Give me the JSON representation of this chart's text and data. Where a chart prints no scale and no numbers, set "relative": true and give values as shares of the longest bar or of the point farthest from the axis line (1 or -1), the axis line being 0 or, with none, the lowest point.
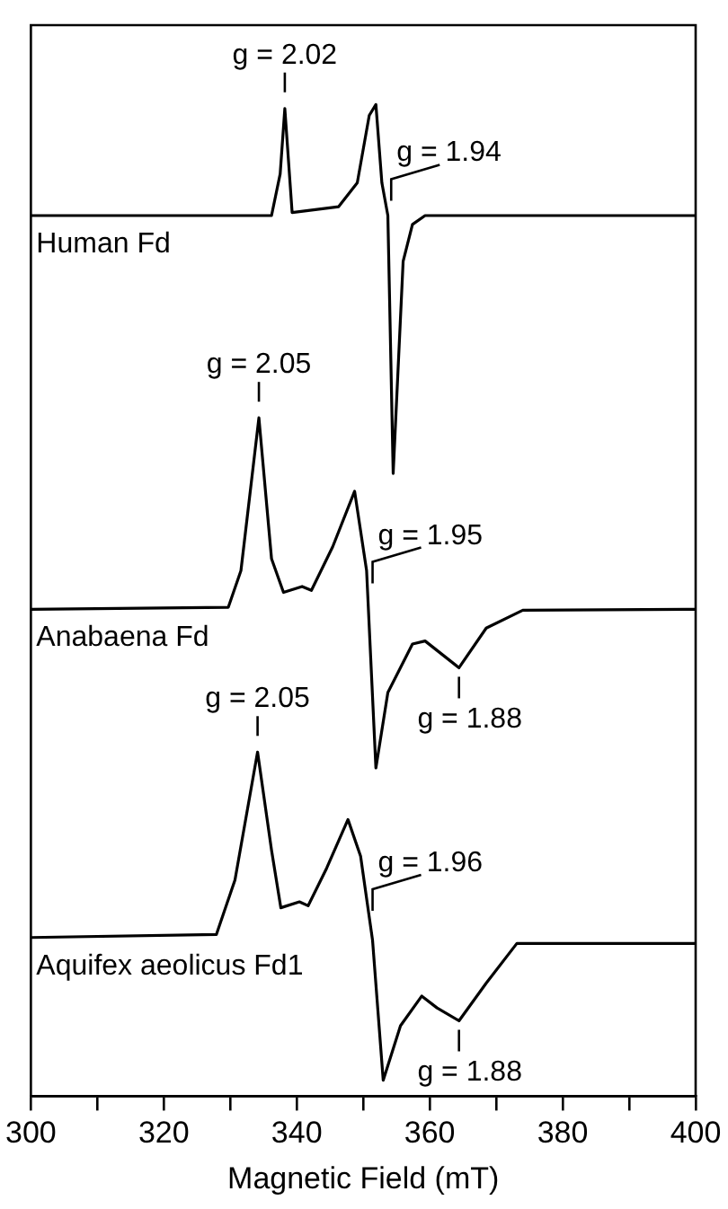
{
  "chart_data": {
    "type": "line",
    "xlabel": "Magnetic Field (mT)",
    "relative": true,
    "xlim": [
      300,
      400
    ],
    "xticks": [
      300,
      {
        "value": 310,
        "label": null
      },
      320,
      {
        "value": 330,
        "label": null
      },
      340,
      {
        "value": 350,
        "label": null
      },
      360,
      {
        "value": 370,
        "label": null
      },
      380,
      {
        "value": 390,
        "label": null
      },
      400
    ],
    "tick_labels": "x",
    "grid": false,
    "legend": false,
    "marker": "none",
    "line_style": "solid",
    "series": [
      {
        "name": "Human Fd",
        "color": "#000000",
        "x": [
          300,
          336.2,
          337.5,
          338.2,
          339.3,
          346.3,
          349.1,
          350.9,
          351.9,
          352.8,
          353.7,
          354.5,
          356,
          357.4,
          359.3,
          400
        ],
        "values": [
          0.888,
          0.888,
          0.93,
          0.996,
          0.891,
          0.897,
          0.921,
          0.989,
          1,
          0.921,
          0.888,
          0.628,
          0.842,
          0.879,
          0.888,
          0.888
        ]
      },
      {
        "name": "Anabaena Fd",
        "color": "#000000",
        "x": [
          300,
          329.7,
          331.6,
          334.3,
          336.2,
          338,
          340.8,
          342.2,
          345.4,
          348.7,
          350.5,
          351.9,
          353.7,
          357.4,
          359.3,
          364.4,
          368.5,
          374,
          400
        ],
        "values": [
          0.491,
          0.493,
          0.53,
          0.684,
          0.542,
          0.508,
          0.514,
          0.51,
          0.554,
          0.61,
          0.53,
          0.331,
          0.407,
          0.456,
          0.459,
          0.432,
          0.472,
          0.49,
          0.491
        ]
      },
      {
        "name": "Aquifex aeolicus Fd1",
        "color": "#000000",
        "x": [
          300,
          327.9,
          330.7,
          334.1,
          336.2,
          337.6,
          340.4,
          341.7,
          344.5,
          347.7,
          349.6,
          351.4,
          353,
          355.6,
          358.8,
          361.1,
          364.4,
          368.5,
          373.1,
          400
        ],
        "values": [
          0.16,
          0.163,
          0.218,
          0.347,
          0.248,
          0.19,
          0.196,
          0.192,
          0.23,
          0.279,
          0.242,
          0.157,
          0.016,
          0.071,
          0.101,
          0.089,
          0.076,
          0.114,
          0.154,
          0.154
        ]
      }
    ],
    "annotations": [
      {
        "text": "g = 2.02",
        "x": 338.2,
        "y": 0.996
      },
      {
        "text": "g = 1.94",
        "x": 354.2,
        "y": 0.903
      },
      {
        "text": "g = 2.05",
        "x": 334.3,
        "y": 0.684
      },
      {
        "text": "g = 1.95",
        "x": 351.4,
        "y": 0.517
      },
      {
        "text": "g = 1.88",
        "x": 364.4,
        "y": 0.432
      },
      {
        "text": "g = 2.05",
        "x": 334.1,
        "y": 0.347
      },
      {
        "text": "g = 1.96",
        "x": 351.4,
        "y": 0.187
      },
      {
        "text": "g = 1.88",
        "x": 364.4,
        "y": 0.076
      }
    ]
  }
}
